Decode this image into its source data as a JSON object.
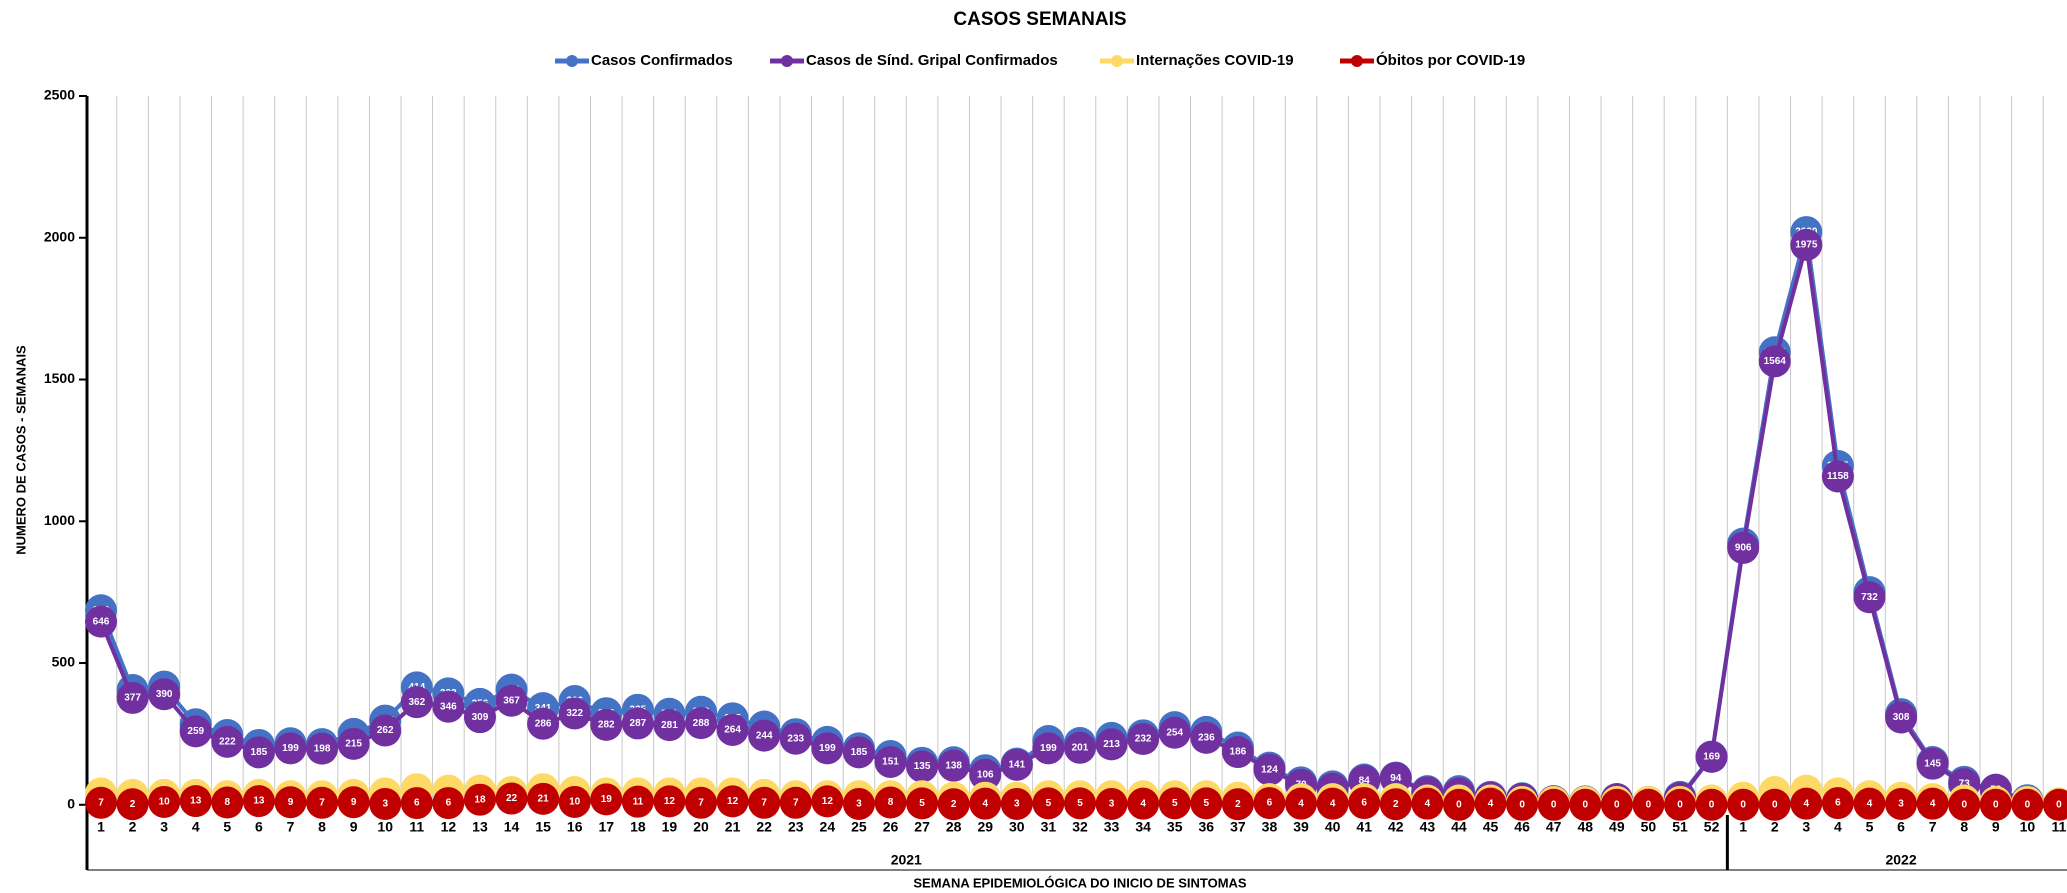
{
  "chart_data": {
    "type": "line",
    "title": "CASOS SEMANAIS",
    "y_label": "NUMERO DE CASOS - SEMANAIS",
    "x_label": "SEMANA EPIDEMIOLÓGICA DO INICIO DE SINTOMAS",
    "categories": [
      "1",
      "2",
      "3",
      "4",
      "5",
      "6",
      "7",
      "8",
      "9",
      "10",
      "11",
      "12",
      "13",
      "14",
      "15",
      "16",
      "17",
      "18",
      "19",
      "20",
      "21",
      "22",
      "23",
      "24",
      "25",
      "26",
      "27",
      "28",
      "29",
      "30",
      "31",
      "32",
      "33",
      "34",
      "35",
      "36",
      "37",
      "38",
      "39",
      "40",
      "41",
      "42",
      "43",
      "44",
      "45",
      "46",
      "47",
      "48",
      "49",
      "50",
      "51",
      "52",
      "1",
      "2",
      "3",
      "4",
      "5",
      "6",
      "7",
      "8",
      "9",
      "10",
      "11"
    ],
    "years": [
      "2021",
      "2021",
      "2021",
      "2021",
      "2021",
      "2021",
      "2021",
      "2021",
      "2021",
      "2021",
      "2021",
      "2021",
      "2021",
      "2021",
      "2021",
      "2021",
      "2021",
      "2021",
      "2021",
      "2021",
      "2021",
      "2021",
      "2021",
      "2021",
      "2021",
      "2021",
      "2021",
      "2021",
      "2021",
      "2021",
      "2021",
      "2021",
      "2021",
      "2021",
      "2021",
      "2021",
      "2021",
      "2021",
      "2021",
      "2021",
      "2021",
      "2021",
      "2021",
      "2021",
      "2021",
      "2021",
      "2021",
      "2021",
      "2021",
      "2021",
      "2021",
      "2021",
      "2022",
      "2022",
      "2022",
      "2022",
      "2022",
      "2022",
      "2022",
      "2022",
      "2022",
      "2022",
      "2022"
    ],
    "ylim": [
      -230,
      2500
    ],
    "yticks": [
      0,
      500,
      1000,
      1500,
      2000,
      2500
    ],
    "legend": "top",
    "series": [
      {
        "name": "Casos Confirmados",
        "color": "#4472c4",
        "labels": true,
        "values": [
          686,
          405,
          417,
          284,
          246,
          211,
          217,
          214,
          250,
          297,
          414,
          393,
          356,
          406,
          341,
          366,
          323,
          335,
          321,
          328,
          305,
          276,
          249,
          222,
          199,
          172,
          148,
          150,
          122,
          145,
          225,
          218,
          236,
          245,
          274,
          257,
          202,
          131,
          79,
          65,
          89,
          96,
          48,
          48,
          28,
          23,
          13,
          12,
          20,
          10,
          28,
          170,
          921,
          1596,
          2020,
          1195,
          750,
          320,
          151,
          81,
          53,
          16,
          4
        ]
      },
      {
        "name": "Casos de Sínd. Gripal Confirmados",
        "color": "#7030a0",
        "labels": true,
        "values": [
          646,
          377,
          390,
          259,
          222,
          185,
          199,
          198,
          215,
          262,
          362,
          346,
          309,
          367,
          286,
          322,
          282,
          287,
          281,
          288,
          264,
          244,
          233,
          199,
          185,
          151,
          135,
          138,
          106,
          141,
          199,
          201,
          213,
          232,
          254,
          236,
          186,
          124,
          70,
          57,
          84,
          94,
          44,
          40,
          25,
          21,
          12,
          10,
          20,
          8,
          24,
          169,
          906,
          1564,
          1975,
          1158,
          732,
          308,
          145,
          73,
          53,
          10,
          2
        ]
      },
      {
        "name": "Internações COVID-19",
        "color": "#ffd966",
        "labels": false,
        "values": [
          40,
          35,
          35,
          35,
          30,
          35,
          30,
          30,
          35,
          40,
          55,
          50,
          50,
          45,
          55,
          45,
          40,
          40,
          40,
          40,
          40,
          35,
          30,
          30,
          30,
          30,
          30,
          25,
          25,
          25,
          30,
          30,
          30,
          30,
          30,
          30,
          25,
          20,
          20,
          20,
          20,
          20,
          15,
          15,
          15,
          10,
          10,
          10,
          10,
          10,
          10,
          15,
          25,
          45,
          50,
          40,
          30,
          25,
          20,
          15,
          10,
          10,
          5
        ]
      },
      {
        "name": "Óbitos por COVID-19",
        "color": "#c00000",
        "labels": true,
        "values": [
          7,
          2,
          10,
          13,
          8,
          13,
          9,
          7,
          9,
          3,
          6,
          6,
          18,
          22,
          21,
          10,
          19,
          11,
          12,
          7,
          12,
          7,
          7,
          12,
          3,
          8,
          5,
          2,
          4,
          3,
          5,
          5,
          3,
          4,
          5,
          5,
          2,
          6,
          4,
          4,
          6,
          2,
          4,
          0,
          4,
          0,
          0,
          0,
          0,
          0,
          0,
          0,
          0,
          0,
          4,
          6,
          4,
          3,
          4,
          0,
          0,
          0,
          0
        ]
      }
    ]
  }
}
